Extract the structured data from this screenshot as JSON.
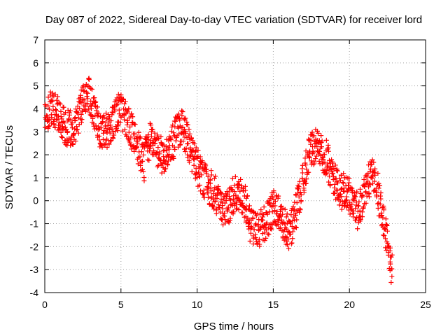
{
  "chart_data": {
    "type": "scatter",
    "title": "Day 087 of 2022, Sidereal Day-to-day VTEC variation (SDTVAR) for receiver lord",
    "xlabel": "GPS time / hours",
    "ylabel": "SDTVAR / TECUs",
    "xlim": [
      0,
      25
    ],
    "ylim": [
      -4,
      7
    ],
    "xticks": [
      0,
      5,
      10,
      15,
      20,
      25
    ],
    "yticks": [
      -4,
      -3,
      -2,
      -1,
      0,
      1,
      2,
      3,
      4,
      5,
      6,
      7
    ],
    "grid": true,
    "marker": "+",
    "color": "#ff0000",
    "sample_step_hours": 0.05,
    "series": [
      {
        "name": "SDTVAR",
        "x": [
          0.0,
          1.0,
          2.0,
          2.8,
          3.5,
          4.3,
          5.0,
          5.8,
          6.5,
          7.0,
          7.5,
          8.2,
          9.0,
          10.0,
          10.8,
          11.8,
          12.5,
          13.5,
          14.0,
          15.0,
          15.5,
          16.0,
          16.8,
          17.5,
          18.0,
          18.5,
          19.0,
          19.5,
          20.0,
          20.6,
          21.2,
          21.6,
          22.0,
          22.4,
          22.8
        ],
        "y": [
          3.8,
          3.2,
          3.3,
          4.8,
          3.7,
          2.8,
          3.4,
          3.2,
          1.7,
          2.9,
          2.4,
          2.2,
          2.6,
          1.9,
          0.6,
          -0.2,
          0.2,
          -1.2,
          -0.8,
          -0.3,
          -0.8,
          -1.4,
          0.0,
          2.0,
          2.6,
          2.4,
          1.0,
          0.2,
          0.1,
          -0.5,
          0.3,
          0.9,
          0.1,
          -0.9,
          -2.6
        ]
      }
    ]
  }
}
